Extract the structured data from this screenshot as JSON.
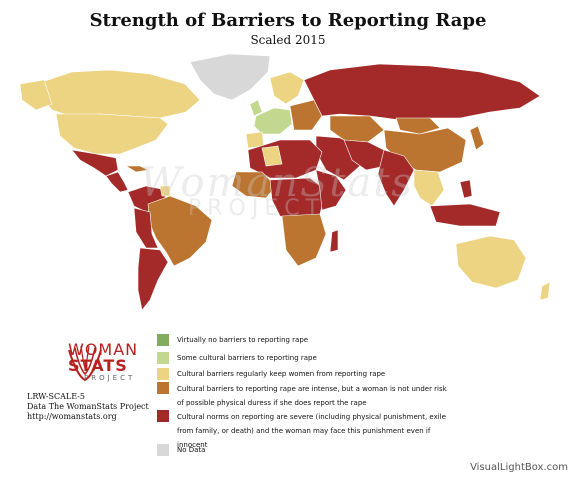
{
  "title": "Strength of Barriers to Reporting Rape",
  "subtitle": "Scaled 2015",
  "watermark": {
    "brand": "WomanStats",
    "sub": "PROJECT"
  },
  "logo": {
    "line1": "WOMAN",
    "line2": "STATS",
    "line3": "PROJECT"
  },
  "info": {
    "scale_id": "LRW-SCALE-5",
    "source": "Data The WomanStats Project",
    "url": "http://womanstats.org"
  },
  "legend": [
    {
      "label": "Virtually no barriers to reporting rape",
      "color": "#82ad5c"
    },
    {
      "label": "Some cultural barriers to reporting rape",
      "color": "#c2d88e"
    },
    {
      "label": "Cultural barriers regularly keep women from reporting rape",
      "color": "#ecd482"
    },
    {
      "label": "Cultural barriers to reporting rape are intense, but a woman is not under risk of possible physical duress if she does report the rape",
      "color": "#bc7530"
    },
    {
      "label": "Cultural norms on reporting are severe (including physical punishment, exile from family, or death) and the woman may face this punishment even if innocent",
      "color": "#a42a2a"
    },
    {
      "label": "No Data",
      "color": "#d8d8d8"
    }
  ],
  "credit": "VisualLightBox.com"
}
